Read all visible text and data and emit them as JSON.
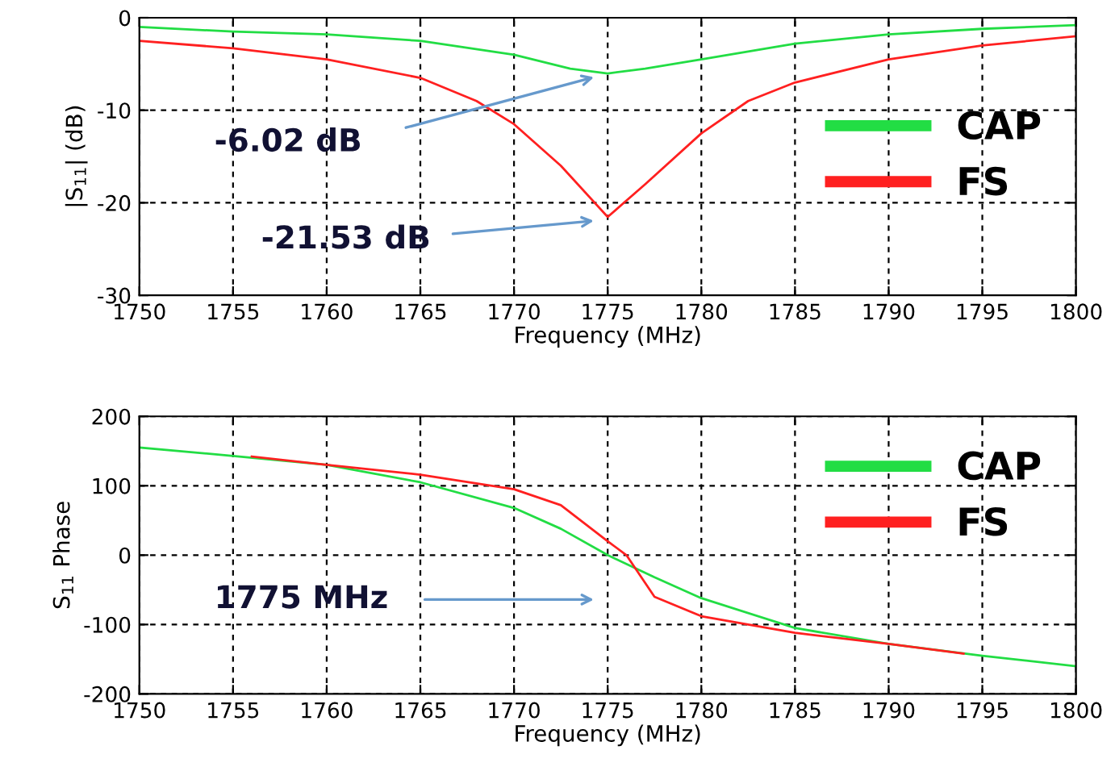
{
  "chart_data": [
    {
      "type": "line",
      "xlabel": "Frequency (MHz)",
      "ylabel": "|S$_{11}$| (dB)",
      "xlim": [
        1750,
        1800
      ],
      "ylim": [
        -30,
        0
      ],
      "xticks": [
        1750,
        1755,
        1760,
        1765,
        1770,
        1775,
        1780,
        1785,
        1790,
        1795,
        1800
      ],
      "yticks": [
        -30,
        -20,
        -10,
        0
      ],
      "grid": true,
      "legend": "right",
      "line_style": "solid",
      "series": [
        {
          "name": "CAP",
          "color": "#22dd44",
          "x": [
            1750,
            1755,
            1760,
            1765,
            1770,
            1773,
            1775,
            1777,
            1780,
            1785,
            1790,
            1795,
            1800
          ],
          "values": [
            -1,
            -1.5,
            -1.8,
            -2.5,
            -4,
            -5.5,
            -6.02,
            -5.5,
            -4.5,
            -2.8,
            -1.8,
            -1.2,
            -0.8
          ]
        },
        {
          "name": "FS",
          "color": "#ff2020",
          "x": [
            1750,
            1755,
            1760,
            1765,
            1768,
            1770,
            1772.5,
            1775,
            1777,
            1780,
            1782.5,
            1785,
            1790,
            1795,
            1800
          ],
          "values": [
            -2.5,
            -3.3,
            -4.5,
            -6.5,
            -9,
            -11.5,
            -16,
            -21.53,
            -18,
            -12.5,
            -9,
            -7,
            -4.5,
            -3,
            -2
          ]
        }
      ],
      "annotations": [
        "-6.02 dB",
        "-21.53 dB"
      ]
    },
    {
      "type": "line",
      "xlabel": "Frequency (MHz)",
      "ylabel": "S$_{11}$ Phase",
      "xlim": [
        1750,
        1800
      ],
      "ylim": [
        -200,
        200
      ],
      "xticks": [
        1750,
        1755,
        1760,
        1765,
        1770,
        1775,
        1780,
        1785,
        1790,
        1795,
        1800
      ],
      "yticks": [
        -200,
        -100,
        0,
        100,
        200
      ],
      "grid": true,
      "legend": "top right",
      "line_style": "solid",
      "series": [
        {
          "name": "CAP",
          "color": "#22dd44",
          "x": [
            1750,
            1755,
            1760,
            1765,
            1770,
            1772.5,
            1775,
            1777.5,
            1780,
            1785,
            1790,
            1795,
            1800
          ],
          "values": [
            155,
            143,
            130,
            105,
            68,
            38,
            0,
            -32,
            -62,
            -105,
            -128,
            -145,
            -160
          ]
        },
        {
          "name": "FS",
          "color": "#ff2020",
          "x": [
            1756,
            1760,
            1765,
            1770,
            1772.5,
            1775,
            1776,
            1777.5,
            1780,
            1785,
            1790,
            1794
          ],
          "values": [
            142,
            130,
            116,
            95,
            72,
            20,
            0,
            -60,
            -88,
            -112,
            -128,
            -142
          ]
        }
      ],
      "annotations": [
        "1775 MHz"
      ]
    }
  ]
}
